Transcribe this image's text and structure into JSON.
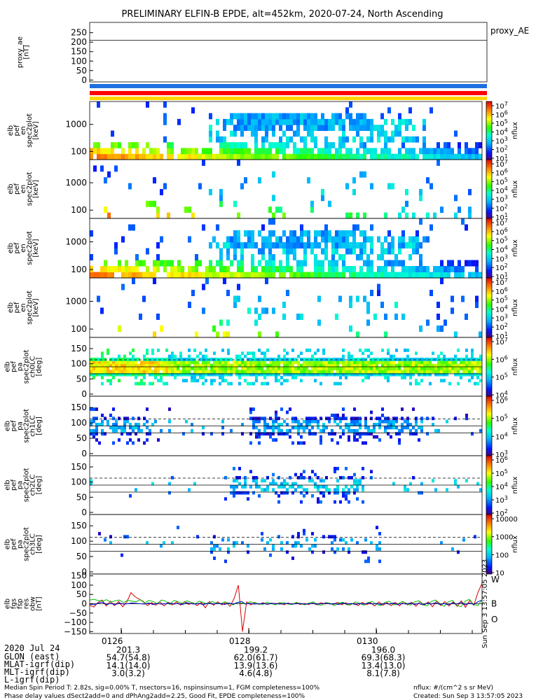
{
  "title": "PRELIMINARY ELFIN-B EPDE, alt=452km, 2020-07-24, North Ascending",
  "colors": {
    "blue_bar": "#1f6fe0",
    "red_bar": "#ff0000",
    "yellow_bar": "#ffd400",
    "line_red": "#d40000",
    "line_blue": "#0000d0",
    "line_green": "#00c000"
  },
  "chart_data": [
    {
      "type": "line",
      "name_tag": "proxy_ae",
      "ylabel": [
        "proxy_ae",
        "[nT]"
      ],
      "yticks": [
        "250",
        "200",
        "150",
        "100",
        "50",
        "0"
      ],
      "ylim": [
        -10,
        260
      ],
      "hlines": [
        210
      ],
      "series": [],
      "side_label": "proxy_AE"
    },
    {
      "type": "heatmap",
      "ylabel": [
        "elb",
        "pef",
        "en",
        "spec2plot",
        "[keV]"
      ],
      "yticks": [
        "1000",
        "100"
      ],
      "scale": "log",
      "ylim": [
        50,
        7000
      ],
      "colorbar": {
        "label": "nflux",
        "ticks": [
          "10^7",
          "10^6",
          "10^5",
          "10^4",
          "10^3",
          "10^2",
          "10^1"
        ]
      }
    },
    {
      "type": "heatmap",
      "ylabel": [
        "elb",
        "pef",
        "en",
        "spec2plot",
        "[keV]"
      ],
      "yticks": [
        "1000",
        "100"
      ],
      "scale": "log",
      "ylim": [
        50,
        7000
      ],
      "colorbar": {
        "label": "nflux",
        "ticks": [
          "10^7",
          "10^6",
          "10^5",
          "10^4",
          "10^3",
          "10^2",
          "10^1"
        ]
      }
    },
    {
      "type": "heatmap",
      "ylabel": [
        "elb",
        "pef",
        "en",
        "spec2plot",
        "[keV]"
      ],
      "yticks": [
        "1000",
        "100"
      ],
      "scale": "log",
      "ylim": [
        50,
        7000
      ],
      "colorbar": {
        "label": "nflux",
        "ticks": [
          "10^7",
          "10^6",
          "10^5",
          "10^4",
          "10^3",
          "10^2",
          "10^1"
        ]
      }
    },
    {
      "type": "heatmap",
      "ylabel": [
        "elb",
        "pef",
        "en",
        "spec2plot",
        "[keV]"
      ],
      "yticks": [
        "1000",
        "100"
      ],
      "scale": "log",
      "ylim": [
        50,
        7000
      ],
      "colorbar": {
        "label": "nflux",
        "ticks": [
          "10^7",
          "10^6",
          "10^5",
          "10^4",
          "10^3",
          "10^2",
          "10^1"
        ]
      }
    },
    {
      "type": "heatmap",
      "ylabel": [
        "elb",
        "pef",
        "pa",
        "spec2plot",
        "ch0LC",
        "[deg]"
      ],
      "yticks": [
        "150",
        "100",
        "50",
        "0"
      ],
      "ylim": [
        0,
        180
      ],
      "hlines": [
        {
          "y": 113,
          "style": "dashed"
        },
        {
          "y": 90,
          "style": "solid"
        },
        {
          "y": 67,
          "style": "solid"
        }
      ],
      "colorbar": {
        "label": "nflux",
        "ticks": [
          "10^7",
          "10^6",
          "10^5",
          "10^4"
        ]
      }
    },
    {
      "type": "heatmap",
      "ylabel": [
        "elb",
        "pef",
        "pa",
        "spec2plot",
        "ch1LC",
        "[deg]"
      ],
      "yticks": [
        "150",
        "100",
        "50",
        "0"
      ],
      "ylim": [
        0,
        180
      ],
      "hlines": [
        {
          "y": 113,
          "style": "dashed"
        },
        {
          "y": 90,
          "style": "solid"
        },
        {
          "y": 67,
          "style": "solid"
        }
      ],
      "colorbar": {
        "label": "nflux",
        "ticks": [
          "10^6",
          "10^5",
          "10^4",
          "10^3"
        ]
      }
    },
    {
      "type": "heatmap",
      "ylabel": [
        "elb",
        "pef",
        "pa",
        "spec2plot",
        "ch2LC",
        "[deg]"
      ],
      "yticks": [
        "150",
        "100",
        "50",
        "0"
      ],
      "ylim": [
        0,
        180
      ],
      "hlines": [
        {
          "y": 113,
          "style": "dashed"
        },
        {
          "y": 90,
          "style": "solid"
        },
        {
          "y": 67,
          "style": "solid"
        }
      ],
      "colorbar": {
        "label": "nflux",
        "ticks": [
          "10^6",
          "10^5",
          "10^4",
          "10^3",
          "10^2"
        ]
      }
    },
    {
      "type": "heatmap",
      "ylabel": [
        "elb",
        "pef",
        "pa",
        "spec2plot",
        "ch3LC",
        "[deg]"
      ],
      "yticks": [
        "150",
        "100",
        "50",
        "0"
      ],
      "ylim": [
        0,
        180
      ],
      "hlines": [
        {
          "y": 113,
          "style": "dashed"
        },
        {
          "y": 90,
          "style": "solid"
        },
        {
          "y": 67,
          "style": "solid"
        }
      ],
      "colorbar": {
        "label": "nflux",
        "ticks": [
          "10000",
          "1000",
          "100",
          "10"
        ]
      }
    },
    {
      "type": "line",
      "ylabel": [
        "elb",
        "fgs",
        "fsp",
        "res",
        "obw",
        "[nT]"
      ],
      "yticks": [
        "150",
        "100",
        "50",
        "0",
        "−50",
        "−100",
        "−150"
      ],
      "ylim": [
        -160,
        160
      ],
      "series": [
        {
          "name": "W",
          "color": "#d40000",
          "values": [
            -8,
            -18,
            6,
            20,
            -12,
            14,
            -10,
            12,
            -16,
            10,
            60,
            38,
            25,
            12,
            -10,
            6,
            -8,
            10,
            -12,
            8,
            -6,
            10,
            -8,
            12,
            -4,
            6,
            -10,
            8,
            -22,
            12,
            -8,
            10,
            -6,
            8,
            -14,
            30,
            100,
            -150,
            10,
            -6,
            8,
            -4,
            6,
            -4,
            4,
            -2,
            6,
            -6,
            4,
            -2,
            4,
            -4,
            2,
            -4,
            4,
            -6,
            6,
            -2,
            4,
            -4,
            8,
            -6,
            6,
            -8,
            4,
            -10,
            8,
            -6,
            6,
            -12,
            10,
            -8,
            6,
            -10,
            8,
            -12,
            10,
            -6,
            8,
            -14,
            12,
            -8,
            10,
            -16,
            14,
            -10,
            12,
            -12,
            10,
            -14,
            16,
            -20,
            18,
            -8,
            60,
            110
          ]
        },
        {
          "name": "B",
          "color": "#00c000",
          "values": [
            20,
            24,
            18,
            14,
            22,
            8,
            16,
            20,
            6,
            18,
            14,
            10,
            22,
            4,
            18,
            12,
            0,
            20,
            14,
            -4,
            18,
            10,
            2,
            16,
            8,
            0,
            14,
            6,
            -2,
            12,
            4,
            0,
            10,
            2,
            -6,
            8,
            4,
            -2,
            10,
            6,
            0,
            -4,
            8,
            2,
            -6,
            4,
            6,
            -2,
            -4,
            8,
            0,
            -6,
            4,
            10,
            -4,
            -8,
            6,
            2,
            -10,
            4,
            8,
            -6,
            -4,
            10,
            2,
            -8,
            6,
            12,
            -4,
            -10,
            8,
            14,
            -6,
            -2,
            12,
            4,
            -8,
            10,
            16,
            -4,
            -12,
            12,
            20,
            2,
            -14,
            10,
            18,
            -8,
            -16,
            14,
            24,
            -4,
            -10,
            22
          ]
        },
        {
          "name": "O",
          "color": "#0000d0",
          "values": [
            -2,
            -6,
            4,
            8,
            -4,
            2,
            -6,
            4,
            -2,
            0,
            4,
            2,
            0,
            -2,
            4,
            -4,
            2,
            -2,
            0,
            4,
            -2,
            2,
            -4,
            6,
            0,
            -2,
            2,
            -6,
            4,
            -2,
            0,
            2,
            -4,
            4,
            -2,
            6,
            12,
            -2,
            2,
            -2,
            0,
            2,
            -2,
            0,
            2,
            -2,
            0,
            2,
            -2,
            0,
            2,
            -2,
            0,
            2,
            -2,
            0,
            4,
            -2,
            2,
            -4,
            4,
            -2,
            2,
            -4,
            2,
            -2,
            4,
            -2,
            2,
            -4,
            2,
            -2,
            4,
            -4,
            2,
            -2,
            4,
            -4,
            2,
            -6,
            4,
            -2,
            6,
            -4,
            2,
            -6,
            4,
            -2,
            8,
            -6,
            4,
            -4,
            10,
            20
          ]
        }
      ],
      "legend": [
        "W",
        "B",
        "O"
      ]
    }
  ],
  "x_axis": {
    "tick_labels": [
      "0126",
      "0128",
      "0130"
    ],
    "rows": [
      {
        "label": "2020 Jul 24",
        "values": [
          "",
          "",
          ""
        ]
      },
      {
        "label": "GLON (east)",
        "values": [
          "201.3",
          "199.2",
          "196.0"
        ]
      },
      {
        "label": "MLAT-igrf(dip)",
        "values": [
          "54.7(54.8)",
          "62.0(61.7)",
          "69.3(68.3)"
        ]
      },
      {
        "label": "MLT-igrf(dip)",
        "values": [
          "14.1(14.0)",
          "13.9(13.6)",
          "13.4(13.0)"
        ]
      },
      {
        "label": "L-igrf(dip)",
        "values": [
          "3.0(3.2)",
          "4.6(4.8)",
          "8.1(7.8)"
        ]
      }
    ]
  },
  "footer": {
    "line1": "Median Spin Period T: 2.82s, sig=0.00% T, nsectors=16, nspinsinsum=1, FGM completeness=100%",
    "line2": "Phase delay values dSect2add=0 and dPhAng2add=2.25, Good Fit, EPDE completeness=100%",
    "units": "nflux: #/(cm^2 s sr MeV)",
    "created": "Created: Sun Sep  3 13:57:05 2023",
    "vertical_stamp": "Sun Sep  3 13:57:05 2023"
  }
}
